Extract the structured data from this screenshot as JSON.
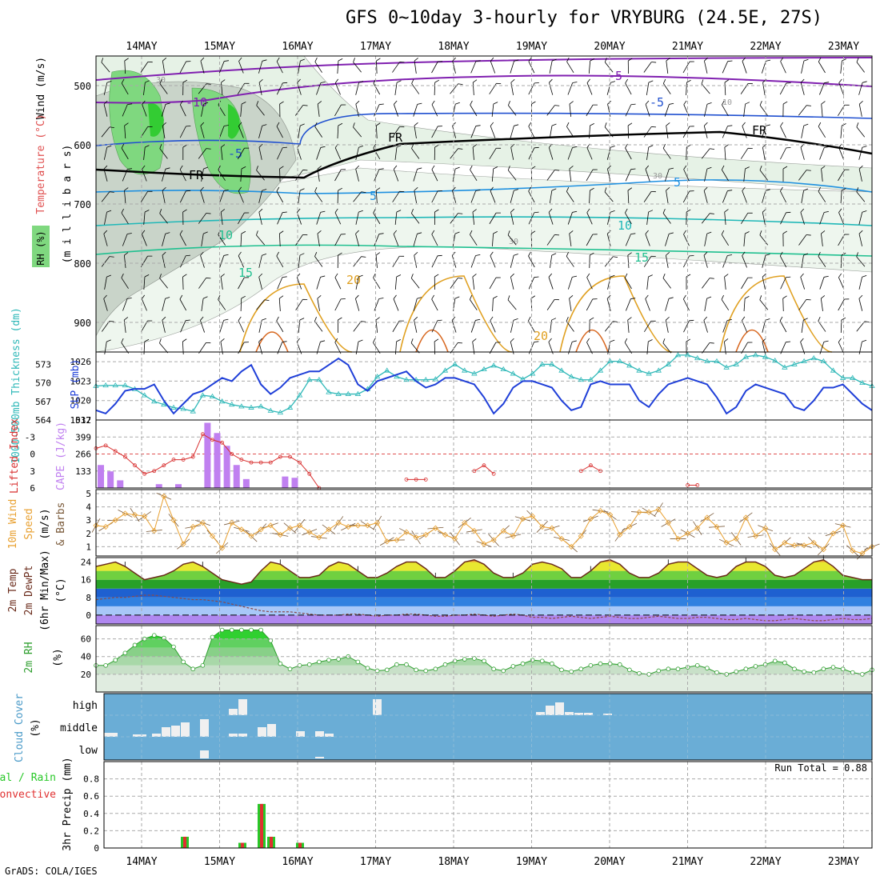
{
  "title": "GFS 0~10day 3-hourly for VRYBURG (24.5E, 27S)",
  "footer": "GrADS: COLA/IGES",
  "colors": {
    "grid": "#aaaaaa",
    "rh_green": "#7fd87f",
    "slp": "#1f3fd8",
    "thickness": "#2fb8b8",
    "lifted": "#d83030",
    "cape": "#c080f0",
    "wind": "#e8a030",
    "rh2m": "#2e9e2e",
    "cloud_bg": "#6aadd6",
    "cloud_bar": "#f0f0f0",
    "precip_total": "#28c828",
    "precip_conv": "#e03030"
  },
  "chart_data": [
    {
      "type": "contour",
      "panel": "upper-air",
      "days": [
        "14MAY",
        "15MAY",
        "16MAY",
        "17MAY",
        "18MAY",
        "19MAY",
        "20MAY",
        "21MAY",
        "22MAY",
        "23MAY"
      ],
      "ylabels": [
        "Temperature (°C)",
        "Wind (m/s)",
        "RH (%)",
        "(m i l l i b a r s)"
      ],
      "yticks": [
        "500",
        "600",
        "700",
        "800",
        "900"
      ],
      "ylim": [
        450,
        950
      ],
      "contour_labels": [
        "-10",
        "-5",
        "-5",
        "FR",
        "FR",
        "FR",
        "5",
        "-5",
        "5",
        "10",
        "10",
        "15",
        "15",
        "20",
        "20",
        "30",
        "30",
        "30",
        "10"
      ]
    },
    {
      "type": "line",
      "panel": "slp-thickness",
      "ylabel_left": "1000-500mb Thickness (dm)",
      "ylabel_right": "SLP (mb)",
      "yticks_left": [
        "573",
        "570",
        "567",
        "564"
      ],
      "yticks_right": [
        "1026",
        "1023",
        "1020",
        "1017"
      ],
      "ylim_slp": [
        1017,
        1027.5
      ],
      "ylim_thickness": [
        564,
        575
      ],
      "x": [
        0,
        1,
        2,
        3,
        4,
        5,
        6,
        7,
        8,
        9,
        10,
        11,
        12,
        13,
        14,
        15,
        16,
        17,
        18,
        19,
        20,
        21,
        22,
        23,
        24,
        25,
        26,
        27,
        28,
        29,
        30,
        31,
        32,
        33,
        34,
        35,
        36,
        37,
        38,
        39,
        40,
        41,
        42,
        43,
        44,
        45,
        46,
        47,
        48,
        49,
        50,
        51,
        52,
        53,
        54,
        55,
        56,
        57,
        58,
        59,
        60,
        61,
        62,
        63,
        64,
        65,
        66,
        67,
        68,
        69,
        70,
        71,
        72,
        73,
        74,
        75,
        76,
        77,
        78,
        79,
        80
      ],
      "series": [
        {
          "name": "SLP",
          "values": [
            1018.5,
            1018,
            1019.5,
            1021.5,
            1021.8,
            1021.8,
            1022.5,
            1020,
            1018,
            1019.5,
            1021,
            1021.5,
            1022.5,
            1023.5,
            1023,
            1024.5,
            1025.5,
            1022.5,
            1021,
            1022,
            1023.5,
            1024,
            1024.5,
            1024.5,
            1025.5,
            1026.5,
            1025.5,
            1022.5,
            1021.5,
            1023,
            1023.5,
            1024,
            1024.5,
            1023,
            1022,
            1022.5,
            1023.5,
            1023.5,
            1023,
            1022.5,
            1020.5,
            1018,
            1019.5,
            1022,
            1023,
            1023,
            1022.5,
            1022,
            1020,
            1018.5,
            1019,
            1022.5,
            1023,
            1022.5,
            1022.5,
            1022.5,
            1020,
            1019,
            1021,
            1022.5,
            1023,
            1023.5,
            1023,
            1022.5,
            1020.5,
            1018,
            1019,
            1021.5,
            1022.5,
            1022,
            1021.5,
            1021,
            1019,
            1018.5,
            1020,
            1022,
            1022,
            1022.5,
            1021,
            1019.5,
            1018.5
          ]
        },
        {
          "name": "Thickness",
          "values": [
            569.5,
            569.6,
            569.6,
            569.6,
            569,
            568,
            567,
            566.5,
            566,
            565.8,
            565.4,
            568,
            567.8,
            567,
            566.5,
            566.2,
            566,
            566.2,
            565.5,
            565.2,
            566,
            568,
            570.5,
            570.5,
            568.5,
            568.2,
            568.2,
            568.2,
            569,
            571,
            572,
            571,
            570.5,
            570.5,
            570.5,
            570.6,
            572,
            573,
            572,
            571.5,
            572.2,
            572.8,
            572.2,
            571.5,
            570.6,
            571.5,
            573,
            573,
            572,
            571,
            570.5,
            570.5,
            572,
            573.5,
            573.5,
            572.8,
            572,
            571.5,
            572,
            573,
            574.5,
            574.5,
            574,
            573.5,
            573.5,
            572.5,
            573,
            574.2,
            574.5,
            574.2,
            573.6,
            572.5,
            573,
            573.5,
            574,
            573.5,
            572,
            570.8,
            570.8,
            570,
            569.5
          ]
        }
      ]
    },
    {
      "type": "bar+line",
      "panel": "lifted-cape",
      "ylabel_left": "Lifted Index",
      "ylabel_right": "CAPE (J/kg)",
      "yticks_left": [
        "-3",
        "0",
        "3",
        "6"
      ],
      "yticks_right": [
        "532",
        "399",
        "266",
        "133"
      ],
      "cape": [
        180,
        130,
        60,
        0,
        0,
        0,
        30,
        0,
        30,
        0,
        0,
        510,
        430,
        330,
        180,
        70,
        0,
        0,
        0,
        90,
        80,
        0,
        0,
        0,
        0,
        0,
        0,
        0,
        0,
        0,
        0,
        0,
        0,
        0,
        0,
        0,
        0,
        0,
        0,
        0,
        0,
        0,
        0,
        0,
        0,
        0,
        0,
        0,
        0,
        0,
        0,
        0,
        0,
        0,
        0,
        0,
        0,
        0,
        0,
        0,
        0,
        0,
        0,
        0,
        0,
        0,
        0,
        0,
        0,
        0,
        0,
        0,
        0,
        0,
        0,
        0,
        0,
        0,
        0,
        0,
        0
      ],
      "lifted_index": [
        -1,
        -1.5,
        -0.5,
        0.5,
        2,
        3.5,
        3,
        2,
        1,
        1,
        0.5,
        -3.5,
        -2.5,
        -2,
        0,
        1,
        1.5,
        1.5,
        1.5,
        0.5,
        0.5,
        1.5,
        3.5,
        6,
        null,
        null,
        null,
        null,
        null,
        null,
        null,
        null,
        4.5,
        4.5,
        4.5,
        null,
        null,
        null,
        null,
        3,
        2,
        3.5,
        null,
        null,
        null,
        null,
        null,
        null,
        null,
        null,
        3,
        2,
        3,
        null,
        null,
        null,
        null,
        null,
        null,
        null,
        null,
        5.5,
        5.5,
        null,
        null,
        null,
        null,
        null,
        null,
        null,
        null,
        null,
        null,
        null,
        null,
        null,
        null,
        null,
        null,
        null,
        null
      ]
    },
    {
      "type": "line",
      "panel": "wind10m",
      "ylabel": "10m Wind Speed (m/s) & Barbs",
      "yticks": [
        "5",
        "4",
        "3",
        "2",
        "1"
      ],
      "ylim": [
        0,
        5
      ],
      "values": [
        2.6,
        2.5,
        3,
        3.5,
        3.4,
        3.3,
        2.2,
        4.8,
        3,
        1.2,
        2.5,
        2.8,
        1.8,
        0.9,
        2.8,
        2.3,
        1.8,
        2.3,
        2.6,
        1.9,
        2.4,
        2.6,
        2.1,
        1.7,
        2.3,
        2.8,
        2.5,
        2.6,
        2.6,
        2.8,
        1.4,
        1.5,
        2.1,
        1.7,
        1.9,
        2.4,
        1.9,
        1.6,
        2.8,
        2.2,
        1.2,
        1.5,
        2.2,
        1.8,
        3.1,
        3.3,
        2.5,
        2.4,
        1.6,
        1,
        1.8,
        3.1,
        3.7,
        3.4,
        1.9,
        2.5,
        3.6,
        3.6,
        3.8,
        2.8,
        1.6,
        2,
        2.4,
        3.2,
        2.5,
        1.3,
        1.6,
        3.2,
        1.8,
        2.4,
        0.8,
        1.3,
        1.1,
        1.1,
        1.3,
        0.8,
        2,
        2.6,
        0.7,
        0.5,
        1
      ]
    },
    {
      "type": "area",
      "panel": "temp2m",
      "ylabel": "2m Temp 2m DewPt (6hr Min/Max) (°C)",
      "yticks": [
        "24",
        "16",
        "8",
        "0"
      ],
      "ylim": [
        -4,
        26
      ],
      "temp_max": [
        22,
        23,
        24,
        22,
        19,
        16,
        17,
        18,
        20,
        23,
        24,
        22,
        19,
        16,
        15,
        14,
        15,
        20,
        24,
        23,
        20,
        17,
        17,
        18,
        22,
        24,
        23,
        20,
        17,
        17,
        19,
        22,
        24,
        24,
        21,
        17,
        17,
        20,
        24,
        25,
        23,
        19,
        17,
        17,
        19,
        23,
        24,
        23,
        21,
        17,
        17,
        20,
        24,
        25,
        23,
        19,
        17,
        17,
        19,
        23,
        24,
        24,
        21,
        18,
        17,
        18,
        22,
        24,
        24,
        22,
        18,
        17,
        18,
        21,
        24,
        25,
        22,
        18,
        17,
        16,
        16
      ],
      "dew_point": [
        7,
        7.5,
        8,
        8,
        8.5,
        9,
        9,
        8.5,
        8,
        7.5,
        7,
        7,
        6.5,
        6,
        5,
        4,
        3,
        2,
        1.5,
        1.5,
        1.5,
        1,
        0.5,
        0,
        0,
        0,
        0.5,
        0.5,
        0,
        -0.5,
        0,
        0,
        0.5,
        0.5,
        0,
        -0.5,
        -0.5,
        0,
        0,
        0.5,
        0,
        -0.5,
        0,
        0.5,
        0,
        -1,
        -1,
        -1.5,
        -1,
        -0.5,
        -1,
        -1.5,
        -1,
        -0.5,
        -1,
        -1.5,
        -1.5,
        -1,
        -0.5,
        -1,
        -1.5,
        -1.5,
        -1,
        -1,
        -1.5,
        -2,
        -2,
        -1.5,
        -2,
        -2.5,
        -2.5,
        -2,
        -1.5,
        -2,
        -2.5,
        -2.5,
        -2,
        -1.5,
        -2,
        -2,
        -1.5
      ]
    },
    {
      "type": "area",
      "panel": "rh2m",
      "ylabel": "2m RH (%)",
      "yticks": [
        "60",
        "40",
        "20"
      ],
      "ylim": [
        0,
        75
      ],
      "values": [
        30,
        30,
        36,
        44,
        53,
        60,
        64,
        61,
        51,
        34,
        26,
        30,
        62,
        70,
        70,
        70,
        70,
        70,
        58,
        32,
        26,
        30,
        31,
        34,
        36,
        37,
        40,
        34,
        27,
        24,
        25,
        31,
        31,
        25,
        24,
        26,
        31,
        35,
        37,
        38,
        35,
        26,
        24,
        29,
        32,
        36,
        35,
        32,
        25,
        23,
        26,
        30,
        32,
        32,
        31,
        25,
        21,
        20,
        24,
        26,
        26,
        28,
        30,
        27,
        22,
        20,
        23,
        26,
        29,
        31,
        35,
        33,
        26,
        23,
        22,
        26,
        28,
        26,
        22,
        20,
        25
      ]
    },
    {
      "type": "bar",
      "panel": "cloud",
      "ylabel": "Cloud Cover (%)",
      "yticks": [
        "high",
        "middle",
        "low"
      ],
      "boxes": [
        {
          "level": "middle",
          "x0": 0,
          "x1": 1.5,
          "val": 5
        },
        {
          "level": "middle",
          "x0": 3,
          "x1": 4.5,
          "val": 3
        },
        {
          "level": "middle",
          "x0": 5,
          "x1": 6,
          "val": 4
        },
        {
          "level": "middle",
          "x0": 6,
          "x1": 7,
          "val": 12
        },
        {
          "level": "middle",
          "x0": 7,
          "x1": 8,
          "val": 14
        },
        {
          "level": "middle",
          "x0": 8,
          "x1": 9,
          "val": 18
        },
        {
          "level": "middle",
          "x0": 10,
          "x1": 11,
          "val": 22
        },
        {
          "level": "high",
          "x0": 13,
          "x1": 14,
          "val": 8
        },
        {
          "level": "high",
          "x0": 14,
          "x1": 15,
          "val": 20
        },
        {
          "level": "middle",
          "x0": 13,
          "x1": 14,
          "val": 4
        },
        {
          "level": "middle",
          "x0": 14,
          "x1": 15,
          "val": 4
        },
        {
          "level": "middle",
          "x0": 16,
          "x1": 17,
          "val": 12
        },
        {
          "level": "middle",
          "x0": 17,
          "x1": 18,
          "val": 16
        },
        {
          "level": "middle",
          "x0": 20,
          "x1": 21,
          "val": 7
        },
        {
          "level": "middle",
          "x0": 22,
          "x1": 23,
          "val": 7
        },
        {
          "level": "middle",
          "x0": 23,
          "x1": 24,
          "val": 4
        },
        {
          "level": "low",
          "x0": 10,
          "x1": 11,
          "val": 10
        },
        {
          "level": "low",
          "x0": 22,
          "x1": 23,
          "val": 2
        },
        {
          "level": "high",
          "x0": 28,
          "x1": 29,
          "val": 20
        },
        {
          "level": "high",
          "x0": 45,
          "x1": 46,
          "val": 4
        },
        {
          "level": "high",
          "x0": 46,
          "x1": 47,
          "val": 12
        },
        {
          "level": "high",
          "x0": 47,
          "x1": 48,
          "val": 16
        },
        {
          "level": "high",
          "x0": 48,
          "x1": 49,
          "val": 4
        },
        {
          "level": "high",
          "x0": 49,
          "x1": 50,
          "val": 3
        },
        {
          "level": "high",
          "x0": 50,
          "x1": 51,
          "val": 3
        },
        {
          "level": "high",
          "x0": 52,
          "x1": 53,
          "val": 2
        }
      ]
    },
    {
      "type": "bar",
      "panel": "precip",
      "ylabel": "3hr Precip (mm)",
      "ylabel_left": "Total / Rain Convective",
      "yticks": [
        "0.8",
        "0.6",
        "0.4",
        "0.2",
        "0"
      ],
      "ylim": [
        0,
        1
      ],
      "annotation": "Run Total = 0.88",
      "values": [
        {
          "x": 8,
          "v": 0.13
        },
        {
          "x": 14,
          "v": 0.06
        },
        {
          "x": 16,
          "v": 0.51
        },
        {
          "x": 17,
          "v": 0.13
        },
        {
          "x": 20,
          "v": 0.06
        }
      ]
    }
  ]
}
